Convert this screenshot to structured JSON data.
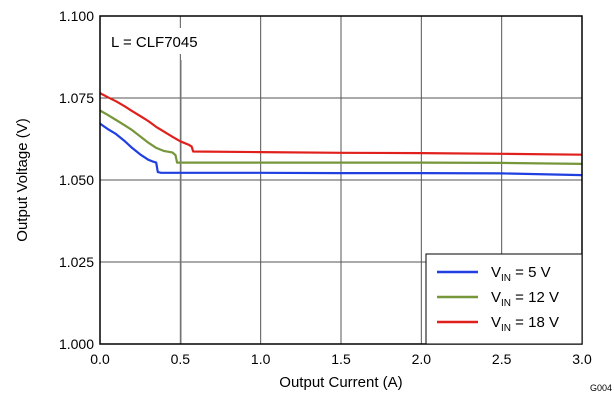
{
  "chart_data": {
    "type": "line",
    "title": "",
    "xlabel": "Output Current (A)",
    "ylabel": "Output Voltage (V)",
    "xlim": [
      0,
      3
    ],
    "ylim": [
      1.0,
      1.1
    ],
    "x_ticks": [
      "0.0",
      "0.5",
      "1.0",
      "1.5",
      "2.0",
      "2.5",
      "3.0"
    ],
    "y_ticks": [
      "1.000",
      "1.025",
      "1.050",
      "1.075",
      "1.100"
    ],
    "grid": true,
    "legend_position": "bottom-right",
    "annotation": "L = CLF7045",
    "figure_id": "G004",
    "series": [
      {
        "name_main": "V",
        "name_sub": "IN",
        "name_rest": "= 5 V",
        "color": "#1f3fe0",
        "x": [
          0.0,
          0.05,
          0.1,
          0.15,
          0.2,
          0.25,
          0.3,
          0.33,
          0.35,
          0.36,
          0.38,
          0.5,
          1.0,
          1.5,
          2.0,
          2.5,
          3.0
        ],
        "y": [
          1.0672,
          1.0655,
          1.064,
          1.062,
          1.0598,
          1.0578,
          1.0562,
          1.0556,
          1.0553,
          1.0524,
          1.0522,
          1.0522,
          1.0522,
          1.0521,
          1.0521,
          1.052,
          1.0515
        ]
      },
      {
        "name_main": "V",
        "name_sub": "IN",
        "name_rest": "= 12 V",
        "color": "#76963a",
        "x": [
          0.0,
          0.05,
          0.1,
          0.15,
          0.2,
          0.25,
          0.3,
          0.35,
          0.4,
          0.45,
          0.47,
          0.48,
          0.5,
          1.0,
          1.5,
          2.0,
          2.5,
          3.0
        ],
        "y": [
          1.0712,
          1.0698,
          1.0683,
          1.0668,
          1.0652,
          1.0633,
          1.0614,
          1.0598,
          1.0588,
          1.0584,
          1.0576,
          1.0553,
          1.0553,
          1.0553,
          1.0553,
          1.0553,
          1.0552,
          1.0549
        ]
      },
      {
        "name_main": "V",
        "name_sub": "IN",
        "name_rest": "= 18 V",
        "color": "#e0201c",
        "x": [
          0.0,
          0.05,
          0.1,
          0.15,
          0.2,
          0.25,
          0.3,
          0.35,
          0.4,
          0.45,
          0.5,
          0.55,
          0.57,
          0.58,
          1.0,
          1.5,
          2.0,
          2.5,
          3.0
        ],
        "y": [
          1.0765,
          1.0752,
          1.074,
          1.0726,
          1.071,
          1.0695,
          1.068,
          1.0662,
          1.0647,
          1.0632,
          1.0618,
          1.0608,
          1.0602,
          1.0587,
          1.0585,
          1.0583,
          1.0582,
          1.058,
          1.0577
        ]
      }
    ]
  }
}
